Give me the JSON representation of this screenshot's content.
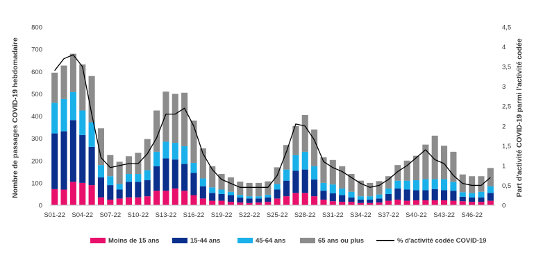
{
  "chart_data": {
    "type": "bar",
    "stacked": true,
    "categories": [
      "S01-22",
      "S02-22",
      "S03-22",
      "S04-22",
      "S05-22",
      "S06-22",
      "S07-22",
      "S08-22",
      "S09-22",
      "S10-22",
      "S11-22",
      "S12-22",
      "S13-22",
      "S14-22",
      "S15-22",
      "S16-22",
      "S17-22",
      "S18-22",
      "S19-22",
      "S20-22",
      "S21-22",
      "S22-22",
      "S23-22",
      "S24-22",
      "S25-22",
      "S26-22",
      "S27-22",
      "S28-22",
      "S29-22",
      "S30-22",
      "S31-22",
      "S32-22",
      "S33-22",
      "S34-22",
      "S35-22",
      "S36-22",
      "S37-22",
      "S38-22",
      "S39-22",
      "S40-22",
      "S41-22",
      "S42-22",
      "S43-22",
      "S44-22",
      "S45-22",
      "S46-22",
      "S47-22",
      "S48-22"
    ],
    "x_tick_labels": [
      "S01-22",
      "S04-22",
      "S07-22",
      "S10-22",
      "S13-22",
      "S16-22",
      "S19-22",
      "S22-22",
      "S25-22",
      "S28-22",
      "S31-22",
      "S34-22",
      "S37-22",
      "S40-22",
      "S43-22",
      "S46-22"
    ],
    "series": [
      {
        "name": "Moins de 15 ans",
        "color": "#e8106b",
        "values": [
          72,
          70,
          105,
          100,
          90,
          35,
          25,
          30,
          35,
          35,
          40,
          65,
          65,
          75,
          65,
          45,
          30,
          20,
          20,
          15,
          12,
          10,
          12,
          15,
          30,
          40,
          55,
          55,
          40,
          25,
          18,
          15,
          15,
          10,
          10,
          12,
          20,
          25,
          20,
          22,
          22,
          22,
          22,
          20,
          18,
          15,
          15,
          20
        ]
      },
      {
        "name": "15-44 ans",
        "color": "#0a2f8c",
        "values": [
          250,
          262,
          277,
          215,
          172,
          90,
          65,
          40,
          70,
          70,
          72,
          110,
          145,
          130,
          120,
          100,
          55,
          35,
          30,
          30,
          22,
          20,
          18,
          20,
          40,
          70,
          100,
          105,
          75,
          40,
          35,
          30,
          20,
          15,
          15,
          18,
          30,
          50,
          50,
          45,
          45,
          50,
          45,
          45,
          20,
          20,
          20,
          35
        ]
      },
      {
        "name": "45-64 ans",
        "color": "#1ab0ea",
        "values": [
          138,
          145,
          126,
          110,
          110,
          55,
          40,
          25,
          35,
          35,
          45,
          65,
          75,
          75,
          80,
          45,
          35,
          25,
          20,
          15,
          12,
          10,
          10,
          12,
          25,
          50,
          70,
          80,
          60,
          35,
          40,
          30,
          25,
          15,
          15,
          18,
          25,
          35,
          40,
          45,
          50,
          45,
          50,
          40,
          20,
          20,
          25,
          30
        ]
      },
      {
        "name": "65 ans ou plus",
        "color": "#8c8c8c",
        "values": [
          135,
          150,
          172,
          207,
          208,
          165,
          95,
          100,
          80,
          95,
          140,
          185,
          225,
          220,
          240,
          190,
          135,
          95,
          70,
          65,
          60,
          60,
          60,
          60,
          75,
          110,
          130,
          165,
          165,
          115,
          110,
          100,
          80,
          70,
          60,
          60,
          55,
          70,
          90,
          110,
          155,
          195,
          150,
          135,
          80,
          75,
          70,
          82
        ]
      },
      {
        "name": "% d'activité codée COVID-19",
        "color": "#000000",
        "axis": "right",
        "values": [
          3.4,
          3.7,
          3.8,
          3.5,
          2.3,
          1.2,
          0.95,
          1.0,
          1.05,
          1.05,
          1.3,
          1.7,
          2.3,
          2.3,
          2.45,
          2.0,
          1.3,
          0.9,
          0.65,
          0.55,
          0.45,
          0.45,
          0.45,
          0.45,
          0.75,
          1.35,
          2.05,
          2.0,
          1.65,
          1.1,
          0.95,
          0.85,
          0.7,
          0.55,
          0.45,
          0.5,
          0.65,
          0.85,
          1.0,
          1.2,
          1.4,
          1.15,
          1.05,
          0.75,
          0.55,
          0.5,
          0.5,
          0.7
        ]
      }
    ],
    "ylabel": "Nombre de passages COVID-19 hebdomadaire",
    "y2label": "Part d'activité COVID-19 parmi l'activité codée",
    "ylim": [
      0,
      800
    ],
    "y_ticks": [
      "0",
      "100",
      "200",
      "300",
      "400",
      "500",
      "600",
      "700",
      "800"
    ],
    "y2lim": [
      0,
      4.5
    ],
    "y2_ticks": [
      "0",
      "0,5",
      "1",
      "1,5",
      "2",
      "2,5",
      "3",
      "3,5",
      "4",
      "4,5"
    ],
    "grid": false,
    "legend_position": "bottom"
  }
}
